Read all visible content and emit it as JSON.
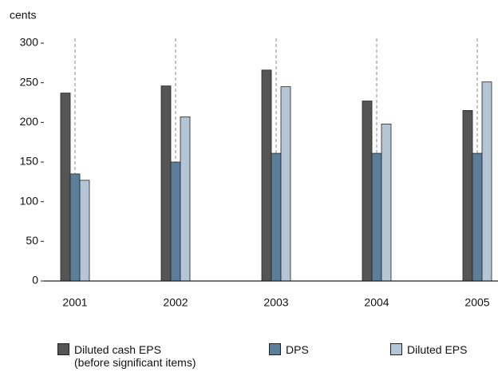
{
  "chart_data": {
    "type": "bar",
    "y_label": "cents",
    "categories": [
      "2001",
      "2002",
      "2003",
      "2004",
      "2005"
    ],
    "series": [
      {
        "name": "Diluted cash EPS\n(before significant items)",
        "color": "#555555",
        "values": [
          237,
          246,
          266,
          227,
          215
        ]
      },
      {
        "name": "DPS",
        "color": "#5b7f99",
        "values": [
          135,
          150,
          161,
          161,
          161
        ]
      },
      {
        "name": "Diluted EPS",
        "color": "#b4c6d6",
        "values": [
          127,
          207,
          245,
          198,
          251
        ]
      }
    ],
    "ylim": [
      0,
      300
    ],
    "yticks": [
      0,
      50,
      100,
      150,
      200,
      250,
      300
    ],
    "legend": "bottom"
  }
}
